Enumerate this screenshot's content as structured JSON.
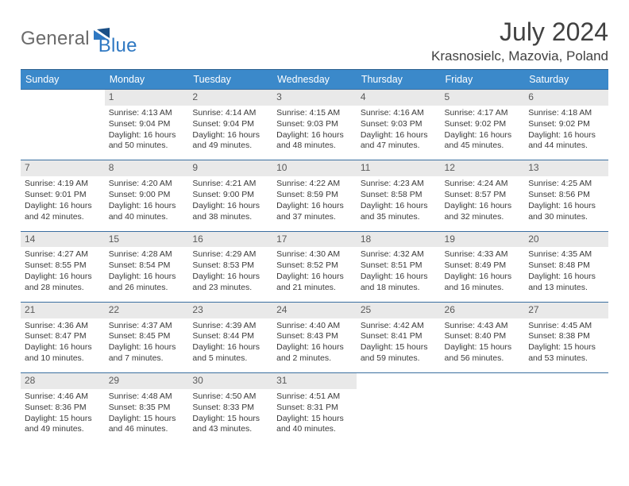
{
  "brand": {
    "word1": "General",
    "word2": "Blue"
  },
  "title": {
    "month": "July 2024",
    "location": "Krasnosielc, Mazovia, Poland"
  },
  "colors": {
    "header_bg": "#3b89ca",
    "header_text": "#ffffff",
    "row_border": "#3b6fa0",
    "daynum_bg": "#e9e9e9",
    "daynum_text": "#5a5a5a",
    "body_text": "#3a3a3a",
    "logo_gray": "#6b6b6b",
    "logo_blue": "#2f78c2",
    "page_bg": "#ffffff"
  },
  "typography": {
    "title_fontsize": 32,
    "location_fontsize": 17,
    "dow_fontsize": 12.5,
    "daynum_fontsize": 12,
    "body_fontsize": 10.5
  },
  "dow": [
    "Sunday",
    "Monday",
    "Tuesday",
    "Wednesday",
    "Thursday",
    "Friday",
    "Saturday"
  ],
  "weeks": [
    [
      {
        "n": "",
        "sr": "",
        "ss": "",
        "dl": ""
      },
      {
        "n": "1",
        "sr": "Sunrise: 4:13 AM",
        "ss": "Sunset: 9:04 PM",
        "dl": "Daylight: 16 hours and 50 minutes."
      },
      {
        "n": "2",
        "sr": "Sunrise: 4:14 AM",
        "ss": "Sunset: 9:04 PM",
        "dl": "Daylight: 16 hours and 49 minutes."
      },
      {
        "n": "3",
        "sr": "Sunrise: 4:15 AM",
        "ss": "Sunset: 9:03 PM",
        "dl": "Daylight: 16 hours and 48 minutes."
      },
      {
        "n": "4",
        "sr": "Sunrise: 4:16 AM",
        "ss": "Sunset: 9:03 PM",
        "dl": "Daylight: 16 hours and 47 minutes."
      },
      {
        "n": "5",
        "sr": "Sunrise: 4:17 AM",
        "ss": "Sunset: 9:02 PM",
        "dl": "Daylight: 16 hours and 45 minutes."
      },
      {
        "n": "6",
        "sr": "Sunrise: 4:18 AM",
        "ss": "Sunset: 9:02 PM",
        "dl": "Daylight: 16 hours and 44 minutes."
      }
    ],
    [
      {
        "n": "7",
        "sr": "Sunrise: 4:19 AM",
        "ss": "Sunset: 9:01 PM",
        "dl": "Daylight: 16 hours and 42 minutes."
      },
      {
        "n": "8",
        "sr": "Sunrise: 4:20 AM",
        "ss": "Sunset: 9:00 PM",
        "dl": "Daylight: 16 hours and 40 minutes."
      },
      {
        "n": "9",
        "sr": "Sunrise: 4:21 AM",
        "ss": "Sunset: 9:00 PM",
        "dl": "Daylight: 16 hours and 38 minutes."
      },
      {
        "n": "10",
        "sr": "Sunrise: 4:22 AM",
        "ss": "Sunset: 8:59 PM",
        "dl": "Daylight: 16 hours and 37 minutes."
      },
      {
        "n": "11",
        "sr": "Sunrise: 4:23 AM",
        "ss": "Sunset: 8:58 PM",
        "dl": "Daylight: 16 hours and 35 minutes."
      },
      {
        "n": "12",
        "sr": "Sunrise: 4:24 AM",
        "ss": "Sunset: 8:57 PM",
        "dl": "Daylight: 16 hours and 32 minutes."
      },
      {
        "n": "13",
        "sr": "Sunrise: 4:25 AM",
        "ss": "Sunset: 8:56 PM",
        "dl": "Daylight: 16 hours and 30 minutes."
      }
    ],
    [
      {
        "n": "14",
        "sr": "Sunrise: 4:27 AM",
        "ss": "Sunset: 8:55 PM",
        "dl": "Daylight: 16 hours and 28 minutes."
      },
      {
        "n": "15",
        "sr": "Sunrise: 4:28 AM",
        "ss": "Sunset: 8:54 PM",
        "dl": "Daylight: 16 hours and 26 minutes."
      },
      {
        "n": "16",
        "sr": "Sunrise: 4:29 AM",
        "ss": "Sunset: 8:53 PM",
        "dl": "Daylight: 16 hours and 23 minutes."
      },
      {
        "n": "17",
        "sr": "Sunrise: 4:30 AM",
        "ss": "Sunset: 8:52 PM",
        "dl": "Daylight: 16 hours and 21 minutes."
      },
      {
        "n": "18",
        "sr": "Sunrise: 4:32 AM",
        "ss": "Sunset: 8:51 PM",
        "dl": "Daylight: 16 hours and 18 minutes."
      },
      {
        "n": "19",
        "sr": "Sunrise: 4:33 AM",
        "ss": "Sunset: 8:49 PM",
        "dl": "Daylight: 16 hours and 16 minutes."
      },
      {
        "n": "20",
        "sr": "Sunrise: 4:35 AM",
        "ss": "Sunset: 8:48 PM",
        "dl": "Daylight: 16 hours and 13 minutes."
      }
    ],
    [
      {
        "n": "21",
        "sr": "Sunrise: 4:36 AM",
        "ss": "Sunset: 8:47 PM",
        "dl": "Daylight: 16 hours and 10 minutes."
      },
      {
        "n": "22",
        "sr": "Sunrise: 4:37 AM",
        "ss": "Sunset: 8:45 PM",
        "dl": "Daylight: 16 hours and 7 minutes."
      },
      {
        "n": "23",
        "sr": "Sunrise: 4:39 AM",
        "ss": "Sunset: 8:44 PM",
        "dl": "Daylight: 16 hours and 5 minutes."
      },
      {
        "n": "24",
        "sr": "Sunrise: 4:40 AM",
        "ss": "Sunset: 8:43 PM",
        "dl": "Daylight: 16 hours and 2 minutes."
      },
      {
        "n": "25",
        "sr": "Sunrise: 4:42 AM",
        "ss": "Sunset: 8:41 PM",
        "dl": "Daylight: 15 hours and 59 minutes."
      },
      {
        "n": "26",
        "sr": "Sunrise: 4:43 AM",
        "ss": "Sunset: 8:40 PM",
        "dl": "Daylight: 15 hours and 56 minutes."
      },
      {
        "n": "27",
        "sr": "Sunrise: 4:45 AM",
        "ss": "Sunset: 8:38 PM",
        "dl": "Daylight: 15 hours and 53 minutes."
      }
    ],
    [
      {
        "n": "28",
        "sr": "Sunrise: 4:46 AM",
        "ss": "Sunset: 8:36 PM",
        "dl": "Daylight: 15 hours and 49 minutes."
      },
      {
        "n": "29",
        "sr": "Sunrise: 4:48 AM",
        "ss": "Sunset: 8:35 PM",
        "dl": "Daylight: 15 hours and 46 minutes."
      },
      {
        "n": "30",
        "sr": "Sunrise: 4:50 AM",
        "ss": "Sunset: 8:33 PM",
        "dl": "Daylight: 15 hours and 43 minutes."
      },
      {
        "n": "31",
        "sr": "Sunrise: 4:51 AM",
        "ss": "Sunset: 8:31 PM",
        "dl": "Daylight: 15 hours and 40 minutes."
      },
      {
        "n": "",
        "sr": "",
        "ss": "",
        "dl": ""
      },
      {
        "n": "",
        "sr": "",
        "ss": "",
        "dl": ""
      },
      {
        "n": "",
        "sr": "",
        "ss": "",
        "dl": ""
      }
    ]
  ]
}
